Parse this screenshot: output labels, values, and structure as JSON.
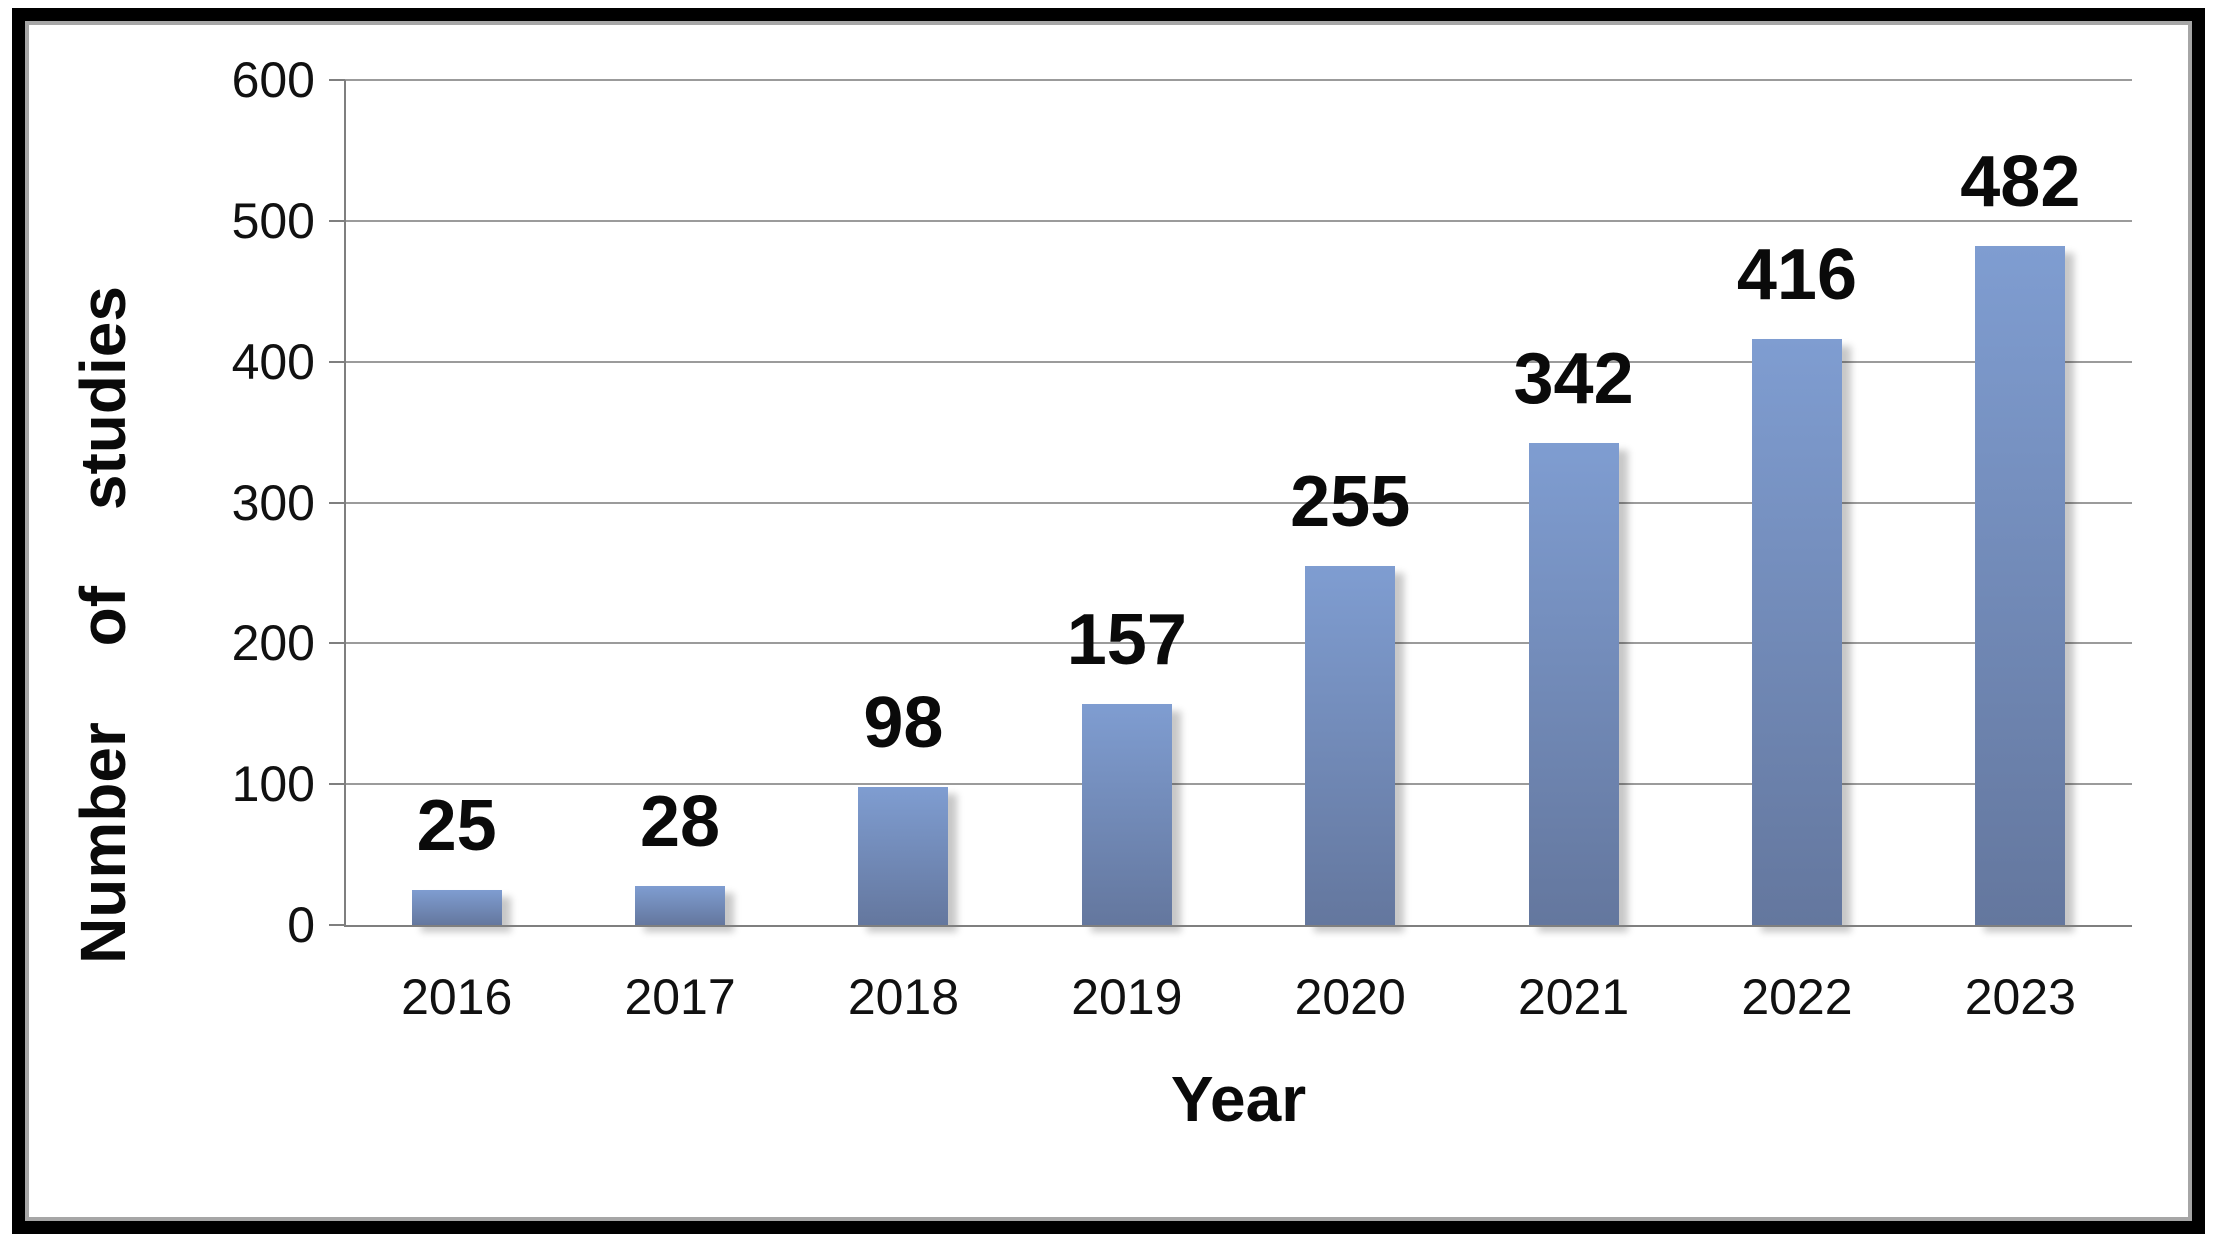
{
  "chart_data": {
    "type": "bar",
    "title": "",
    "categories": [
      "2016",
      "2017",
      "2018",
      "2019",
      "2020",
      "2021",
      "2022",
      "2023"
    ],
    "values": [
      25,
      28,
      98,
      157,
      255,
      342,
      416,
      482
    ],
    "xlabel": "Year",
    "ylabel": "Number of studies",
    "ylim": [
      0,
      600
    ],
    "yticks": [
      0,
      100,
      200,
      300,
      400,
      500,
      600
    ],
    "grid": "horizontal",
    "legend": "none",
    "bar_color_top": "#7f9dd1",
    "bar_color_bottom": "#64779e",
    "gridline_color": "#9b9b9b",
    "axis_color": "#7f7f7f",
    "frame_border_color": "#000000",
    "frame_inner_edge_color": "#a6a6a6",
    "label_color": "#0a0a0a"
  }
}
